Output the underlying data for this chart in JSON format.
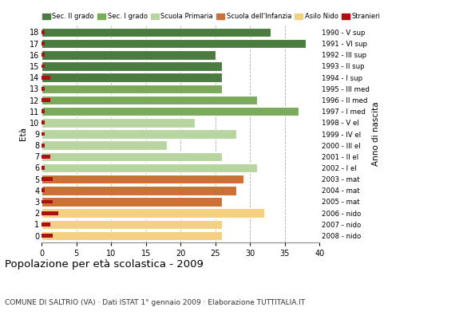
{
  "ages": [
    18,
    17,
    16,
    15,
    14,
    13,
    12,
    11,
    10,
    9,
    8,
    7,
    6,
    5,
    4,
    3,
    2,
    1,
    0
  ],
  "birth_years": [
    "1990 - V sup",
    "1991 - VI sup",
    "1992 - III sup",
    "1993 - II sup",
    "1994 - I sup",
    "1995 - III med",
    "1996 - II med",
    "1997 - I med",
    "1998 - V el",
    "1999 - IV el",
    "2000 - III el",
    "2001 - II el",
    "2002 - I el",
    "2003 - mat",
    "2004 - mat",
    "2005 - mat",
    "2006 - nido",
    "2007 - nido",
    "2008 - nido"
  ],
  "bar_values": [
    33,
    38,
    25,
    26,
    26,
    26,
    31,
    37,
    22,
    28,
    18,
    26,
    31,
    29,
    28,
    26,
    32,
    26,
    26
  ],
  "stranieri_values": [
    0.4,
    0.4,
    0.4,
    0.4,
    1.2,
    0.4,
    1.2,
    0.4,
    0.4,
    0.4,
    0.4,
    1.2,
    0.4,
    1.6,
    0.4,
    1.6,
    2.4,
    1.2,
    1.6
  ],
  "bar_colors": [
    "#4a7c3f",
    "#4a7c3f",
    "#4a7c3f",
    "#4a7c3f",
    "#4a7c3f",
    "#7aaa5a",
    "#7aaa5a",
    "#7aaa5a",
    "#b8d5a0",
    "#b8d5a0",
    "#b8d5a0",
    "#b8d5a0",
    "#b8d5a0",
    "#cc7033",
    "#cc7033",
    "#cc7033",
    "#f5d080",
    "#f5d080",
    "#f5d080"
  ],
  "legend_labels": [
    "Sec. II grado",
    "Sec. I grado",
    "Scuola Primaria",
    "Scuola dell'Infanzia",
    "Asilo Nido",
    "Stranieri"
  ],
  "legend_colors": [
    "#4a7c3f",
    "#7aaa5a",
    "#b8d5a0",
    "#cc7033",
    "#f5d080",
    "#aa1111"
  ],
  "stranieri_color": "#aa1111",
  "title": "Popolazione per età scolastica - 2009",
  "subtitle": "COMUNE DI SALTRIO (VA) · Dati ISTAT 1° gennaio 2009 · Elaborazione TUTTITALIA.IT",
  "xlabel_eta": "Età",
  "xlabel_anno": "Anno di nascita",
  "xlim": [
    0,
    40
  ],
  "xticks": [
    0,
    5,
    10,
    15,
    20,
    25,
    30,
    35,
    40
  ],
  "grid_color": "#aaaaaa",
  "bar_height": 0.82,
  "background_color": "#ffffff"
}
